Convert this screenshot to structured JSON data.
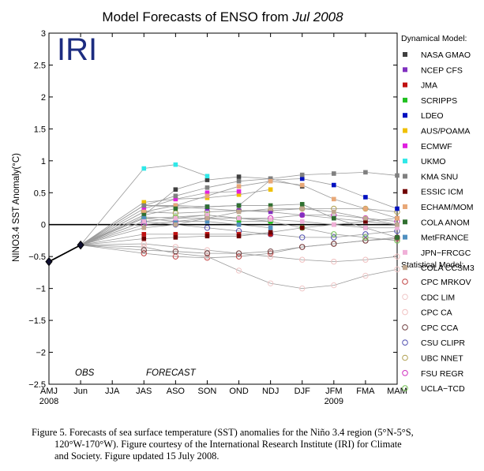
{
  "chart_data": {
    "type": "line",
    "title_prefix": "Model Forecasts of ENSO from ",
    "title_date": "Jul 2008",
    "logo": "IRI",
    "ylabel": "NINO3.4 SST Anomaly(°C)",
    "ylim": [
      -2.5,
      3
    ],
    "yticks": [
      "−2.5",
      "−2",
      "−1.5",
      "−1",
      "−0.5",
      "0",
      "0.5",
      "1",
      "1.5",
      "2",
      "2.5",
      "3"
    ],
    "ytick_values": [
      -2.5,
      -2,
      -1.5,
      -1,
      -0.5,
      0,
      0.5,
      1,
      1.5,
      2,
      2.5,
      3
    ],
    "categories": [
      "AMJ",
      "Jun",
      "JJA",
      "JAS",
      "ASO",
      "SON",
      "OND",
      "NDJ",
      "DJF",
      "JFM",
      "FMA",
      "MAM"
    ],
    "year_labels": [
      {
        "text": "2008",
        "at": 0
      },
      {
        "text": "2009",
        "at": 9
      }
    ],
    "obs_label": "OBS",
    "forecast_label": "FORECAST",
    "observed": {
      "x": [
        0,
        1
      ],
      "values": [
        -0.58,
        -0.32
      ]
    },
    "legend_dynamical_title": "Dynamical Model:",
    "legend_statistical_title": "Statistical Model:",
    "dynamical": [
      {
        "name": "NASA GMAO",
        "color": "#404040",
        "values": [
          0.15,
          0.55,
          0.7,
          0.75,
          0.72,
          0.6,
          null,
          null,
          null
        ]
      },
      {
        "name": "NCEP CFS",
        "color": "#8030c0",
        "values": [
          0.3,
          0.28,
          0.25,
          0.22,
          0.2,
          0.15,
          0.1,
          0.05,
          0.0
        ]
      },
      {
        "name": "JMA",
        "color": "#c01010",
        "values": [
          -0.15,
          -0.15,
          -0.15,
          -0.15,
          -0.15,
          null,
          null,
          null,
          null
        ]
      },
      {
        "name": "SCRIPPS",
        "color": "#20c020",
        "values": [
          0.12,
          0.1,
          0.1,
          0.05,
          0.05,
          null,
          null,
          null,
          null
        ]
      },
      {
        "name": "LDEO",
        "color": "#0010c0",
        "values": [
          0.3,
          0.3,
          0.28,
          0.3,
          0.7,
          0.72,
          0.62,
          0.43,
          0.25
        ]
      },
      {
        "name": "AUS/POAMA",
        "color": "#f0c000",
        "values": [
          0.35,
          0.4,
          0.42,
          0.47,
          0.55,
          null,
          null,
          null,
          null
        ]
      },
      {
        "name": "ECMWF",
        "color": "#e020e0",
        "values": [
          0.25,
          0.4,
          0.5,
          0.52,
          null,
          null,
          null,
          null,
          null
        ]
      },
      {
        "name": "UKMO",
        "color": "#30e8e8",
        "values": [
          0.88,
          0.94,
          0.76,
          null,
          null,
          null,
          null,
          null,
          null
        ]
      },
      {
        "name": "KMA SNU",
        "color": "#808080",
        "values": [
          0.3,
          0.45,
          0.58,
          0.68,
          0.72,
          0.78,
          0.8,
          0.82,
          0.77
        ]
      },
      {
        "name": "ESSIC ICM",
        "color": "#700000",
        "values": [
          -0.22,
          -0.2,
          -0.18,
          -0.18,
          -0.12,
          -0.05,
          0.0,
          0.05,
          0.1
        ]
      },
      {
        "name": "ECHAM/MOM",
        "color": "#e8a878",
        "values": [
          0.2,
          0.3,
          0.45,
          0.6,
          0.68,
          0.62,
          0.4,
          0.25,
          0.1
        ]
      },
      {
        "name": "COLA ANOM",
        "color": "#307030",
        "values": [
          0.15,
          0.25,
          0.28,
          0.3,
          0.3,
          0.32,
          0.1,
          -0.05,
          -0.2
        ]
      },
      {
        "name": "MetFRANCE",
        "color": "#5090c0",
        "values": [
          0.1,
          0.05,
          0.05,
          0.0,
          -0.05,
          null,
          null,
          null,
          null
        ]
      },
      {
        "name": "JPN−FRCGC",
        "color": "#f0b0d8",
        "values": [
          0.05,
          0.1,
          0.15,
          0.1,
          0.08,
          0.05,
          0.0,
          -0.05,
          -0.05
        ]
      },
      {
        "name": "COLA CCSM3",
        "color": "#c0a890",
        "values": [
          -0.05,
          0.0,
          0.1,
          0.2,
          0.25,
          0.25,
          0.2,
          0.1,
          0.0
        ]
      }
    ],
    "statistical": [
      {
        "name": "CPC MRKOV",
        "color": "#c04040",
        "values": [
          -0.45,
          -0.5,
          -0.52,
          -0.5,
          -0.45,
          -0.35,
          -0.3,
          -0.25,
          -0.22
        ]
      },
      {
        "name": "CDC LIM",
        "color": "#f0c8c8",
        "values": [
          -0.35,
          -0.45,
          -0.5,
          -0.72,
          -0.92,
          -1.0,
          -0.95,
          -0.8,
          -0.7
        ]
      },
      {
        "name": "CPC CA",
        "color": "#f0c0c0",
        "values": [
          -0.3,
          -0.35,
          -0.4,
          -0.45,
          -0.5,
          -0.55,
          -0.58,
          -0.55,
          -0.5
        ]
      },
      {
        "name": "CPC CCA",
        "color": "#704040",
        "values": [
          -0.4,
          -0.42,
          -0.45,
          -0.45,
          -0.42,
          -0.35,
          -0.3,
          -0.25,
          -0.2
        ]
      },
      {
        "name": "CSU CLIPR",
        "color": "#5050b0",
        "values": [
          0.05,
          0.0,
          -0.05,
          -0.1,
          -0.15,
          -0.2,
          -0.2,
          -0.15,
          -0.1
        ]
      },
      {
        "name": "UBC NNET",
        "color": "#b0a050",
        "values": [
          0.2,
          0.18,
          0.2,
          0.22,
          0.22,
          0.25,
          0.25,
          0.25,
          0.2
        ]
      },
      {
        "name": "FSU REGR",
        "color": "#d030c0",
        "values": [
          0.0,
          0.05,
          0.1,
          0.1,
          0.1,
          0.15,
          0.15,
          0.1,
          0.05
        ]
      },
      {
        "name": "UCLA−TCD",
        "color": "#70c050",
        "values": [
          0.1,
          0.12,
          0.15,
          0.1,
          0.05,
          -0.05,
          -0.15,
          -0.2,
          -0.25
        ]
      }
    ]
  },
  "caption": {
    "line1": "Figure 5. Forecasts of sea surface temperature (SST) anomalies for the Niño 3.4 region (5°N-5°S,",
    "line2": "120°W-170°W).  Figure courtesy of the International Research Institute (IRI) for Climate",
    "line3": "and Society.  Figure updated 15 July 2008."
  }
}
